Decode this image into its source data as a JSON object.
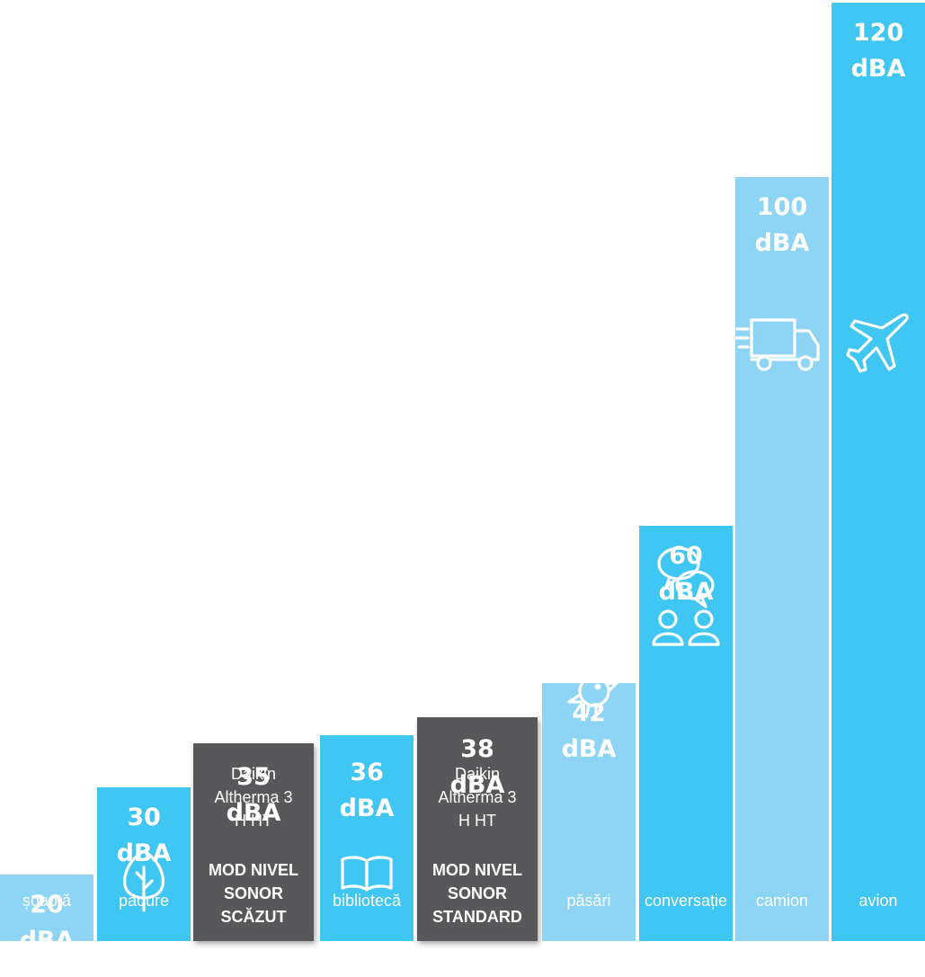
{
  "chart_data": {
    "type": "bar",
    "categories": [
      "șoaptă",
      "pădure",
      "Daikin Altherma 3 H HT - MOD NIVEL SONOR SCĂZUT",
      "bibliotecă",
      "Daikin Altherma 3 H HT - MOD NIVEL SONOR STANDARD",
      "păsări",
      "conversație",
      "camion",
      "avion"
    ],
    "values": [
      20,
      30,
      35,
      36,
      38,
      42,
      60,
      100,
      120
    ],
    "unit": "dBA",
    "ylim": [
      0,
      120
    ],
    "grid": false,
    "legend": "none",
    "title": "",
    "xlabel": "",
    "ylabel": ""
  },
  "colors": {
    "light": "#8ed4f4",
    "mid": "#40c6f3",
    "dark": "#58585a",
    "text": "#ffffff"
  },
  "bars": [
    {
      "value_label": "20",
      "unit": "dBA",
      "label": "șoaptă",
      "style": "light",
      "icon": "whisper-icon"
    },
    {
      "value_label": "30",
      "unit": "dBA",
      "label": "pădure",
      "style": "mid",
      "icon": "tree-icon"
    },
    {
      "value_label": "35",
      "unit": "dBA",
      "device_lines": [
        "Daikin",
        "Altherma 3",
        "H HT"
      ],
      "mode_lines": [
        "MOD NIVEL",
        "SONOR",
        "SCĂZUT"
      ],
      "style": "dark"
    },
    {
      "value_label": "36",
      "unit": "dBA",
      "label": "bibliotecă",
      "style": "mid",
      "icon": "book-icon"
    },
    {
      "value_label": "38",
      "unit": "dBA",
      "device_lines": [
        "Daikin",
        "Altherma 3",
        "H HT"
      ],
      "mode_lines": [
        "MOD NIVEL",
        "SONOR",
        "STANDARD"
      ],
      "style": "dark"
    },
    {
      "value_label": "42",
      "unit": "dBA",
      "label": "păsări",
      "style": "light",
      "icon": "bird-icon"
    },
    {
      "value_label": "60",
      "unit": "dBA",
      "label": "conversație",
      "style": "mid",
      "icon": "conversation-icon"
    },
    {
      "value_label": "100",
      "unit": "dBA",
      "label": "camion",
      "style": "light",
      "icon": "truck-icon"
    },
    {
      "value_label": "120",
      "unit": "dBA",
      "label": "avion",
      "style": "mid",
      "icon": "airplane-icon"
    }
  ]
}
